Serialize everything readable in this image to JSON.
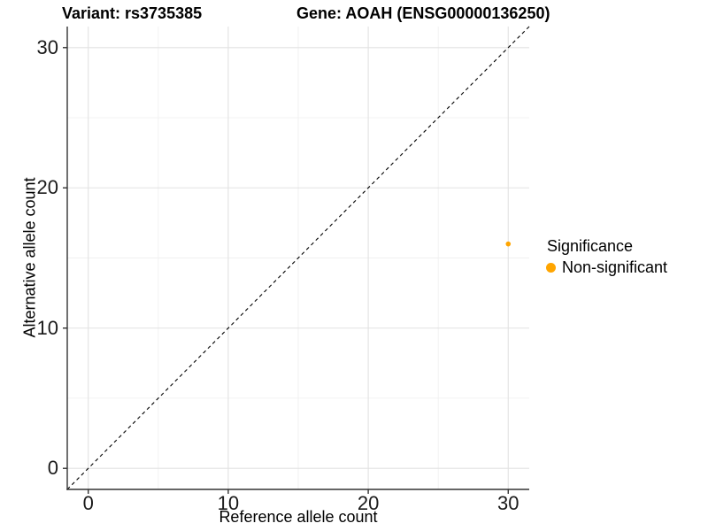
{
  "chart_data": {
    "type": "scatter",
    "title_left": "Variant: rs3735385",
    "title_right": "Gene: AOAH (ENSG00000136250)",
    "xlabel": "Reference allele count",
    "ylabel": "Alternative allele count",
    "xlim": [
      -1.5,
      31.5
    ],
    "ylim": [
      -1.5,
      31.5
    ],
    "x_ticks": [
      0,
      10,
      20,
      30
    ],
    "y_ticks": [
      0,
      10,
      20,
      30
    ],
    "x_minor_ticks": [
      5,
      15,
      25
    ],
    "y_minor_ticks": [
      5,
      15,
      25
    ],
    "grid": true,
    "identity_line": {
      "slope": 1,
      "intercept": 0,
      "style": "dashed",
      "color": "#000000"
    },
    "series": [
      {
        "name": "Non-significant",
        "color": "#FFA500",
        "points": [
          {
            "x": 30,
            "y": 16
          }
        ]
      }
    ],
    "legend": {
      "position": "right",
      "title": "Significance",
      "entries": [
        {
          "label": "Non-significant",
          "color": "#FFA500"
        }
      ]
    }
  },
  "colors": {
    "background": "#FFFFFF",
    "grid_major": "#E2E2E2",
    "grid_minor": "#F0F0F0",
    "axis_line": "#333333",
    "tick_text": "#1A1A1A",
    "point_orange": "#FFA500",
    "dashed_line": "#000000"
  }
}
